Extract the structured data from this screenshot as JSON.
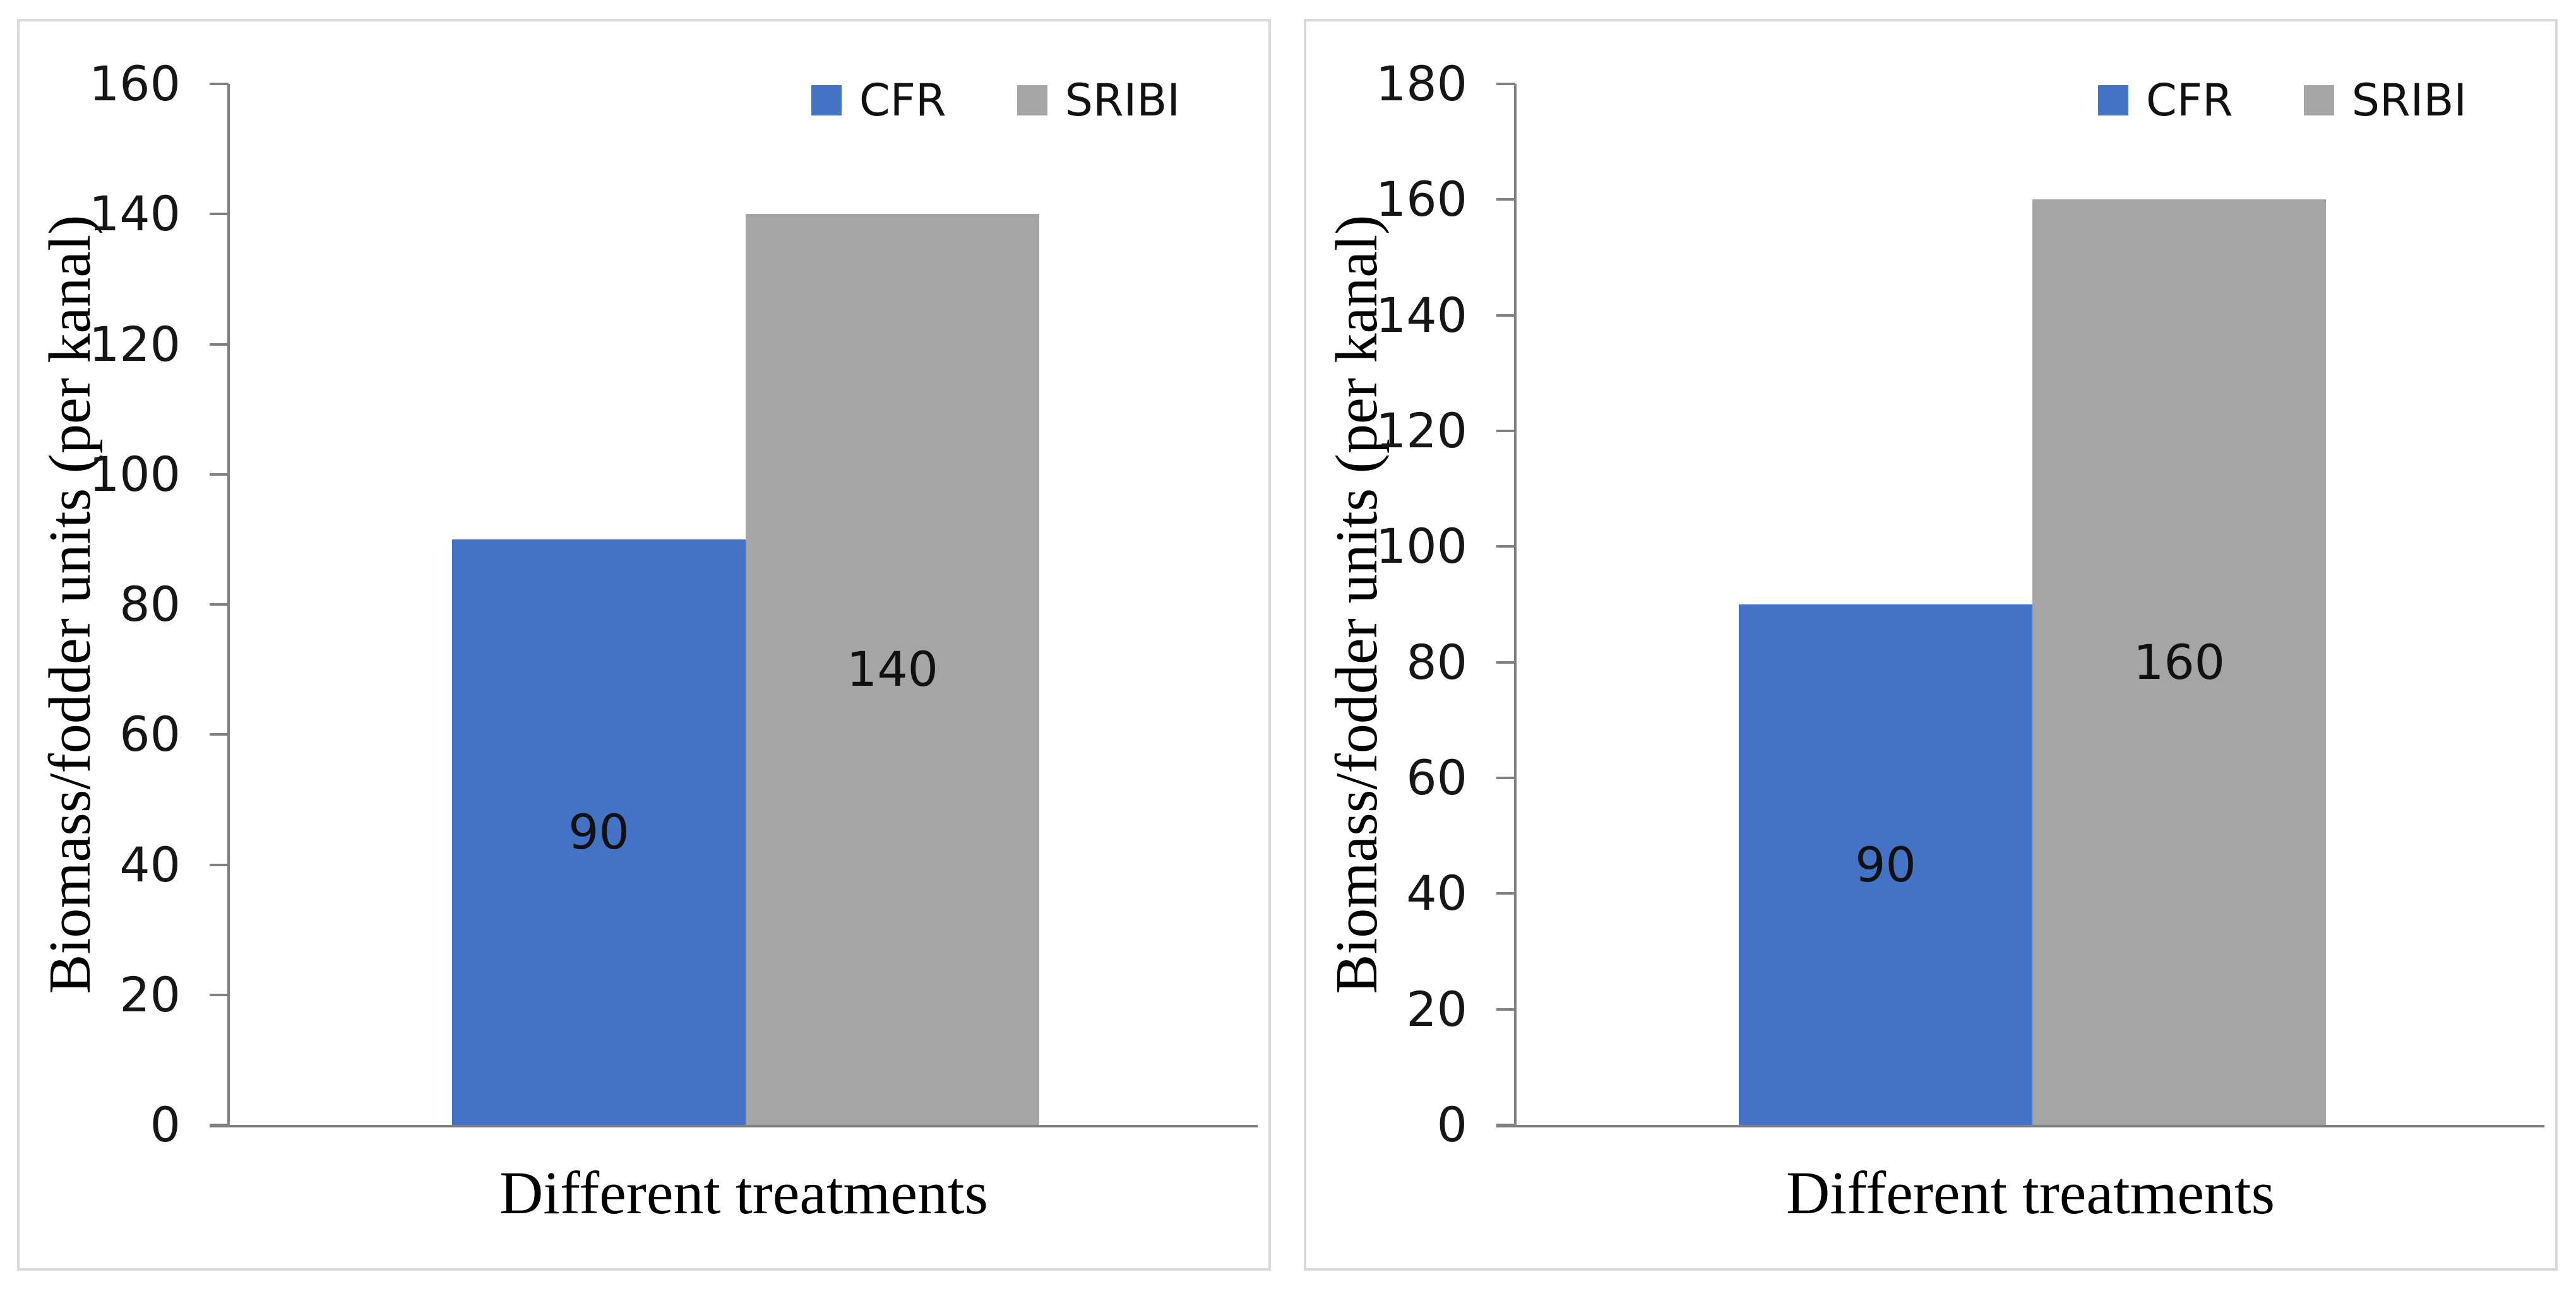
{
  "page": {
    "background": "#ffffff",
    "panel_border_color": "#d9d9d9",
    "axis_color": "#7f7f7f"
  },
  "chart_data": [
    {
      "type": "bar",
      "categories": [
        "CFR",
        "SRIBI"
      ],
      "series": [
        {
          "name": "CFR",
          "value": 90,
          "color": "#4472C4",
          "data_label": "90"
        },
        {
          "name": "SRIBI",
          "value": 140,
          "color": "#A5A5A5",
          "data_label": "140"
        }
      ],
      "xlabel": "Different treatments",
      "ylabel": "Biomass/fodder units (per kanal)",
      "ylim": [
        0,
        160
      ],
      "ytick_step": 20,
      "yticks": [
        "0",
        "20",
        "40",
        "60",
        "80",
        "100",
        "120",
        "140",
        "160"
      ],
      "grid": false,
      "legend": {
        "position": "top-right",
        "entries": [
          {
            "label": "CFR",
            "color": "#4472C4"
          },
          {
            "label": "SRIBI",
            "color": "#A5A5A5"
          }
        ]
      }
    },
    {
      "type": "bar",
      "categories": [
        "CFR",
        "SRIBI"
      ],
      "series": [
        {
          "name": "CFR",
          "value": 90,
          "color": "#4472C4",
          "data_label": "90"
        },
        {
          "name": "SRIBI",
          "value": 160,
          "color": "#A5A5A5",
          "data_label": "160"
        }
      ],
      "xlabel": "Different treatments",
      "ylabel": "Biomass/fodder units (per kanal)",
      "ylim": [
        0,
        180
      ],
      "ytick_step": 20,
      "yticks": [
        "0",
        "20",
        "40",
        "60",
        "80",
        "100",
        "120",
        "140",
        "160",
        "180"
      ],
      "grid": false,
      "legend": {
        "position": "top-right",
        "entries": [
          {
            "label": "CFR",
            "color": "#4472C4"
          },
          {
            "label": "SRIBI",
            "color": "#A5A5A5"
          }
        ]
      }
    }
  ]
}
